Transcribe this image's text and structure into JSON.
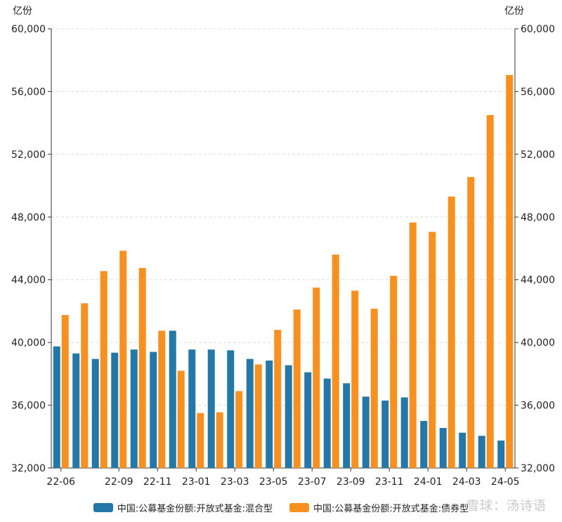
{
  "chart_data": {
    "type": "bar",
    "unit_left": "亿份",
    "unit_right": "亿份",
    "categories": [
      "22-06",
      "22-07",
      "22-08",
      "22-09",
      "22-10",
      "22-11",
      "22-12",
      "23-01",
      "23-02",
      "23-03",
      "23-04",
      "23-05",
      "23-06",
      "23-07",
      "23-08",
      "23-09",
      "23-10",
      "23-11",
      "23-12",
      "24-01",
      "24-02",
      "24-03",
      "24-04",
      "24-05"
    ],
    "x_tick_labels": [
      "22-06",
      "22-09",
      "22-11",
      "23-01",
      "23-03",
      "23-05",
      "23-07",
      "23-09",
      "23-11",
      "24-01",
      "24-03",
      "24-05"
    ],
    "series": [
      {
        "name": "中国:公募基金份额:开放式基金:混合型",
        "color": "#2378a8",
        "values": [
          39750,
          39300,
          38950,
          39350,
          39550,
          39400,
          40750,
          39550,
          39550,
          39500,
          38950,
          38850,
          38550,
          38100,
          37700,
          37400,
          36550,
          36300,
          36500,
          35000,
          34550,
          34250,
          34050,
          33750
        ]
      },
      {
        "name": "中国:公募基金份额:开放式基金:债券型",
        "color": "#f7901e",
        "values": [
          41750,
          42500,
          44550,
          45850,
          44750,
          40750,
          38200,
          35500,
          35550,
          36900,
          38600,
          40800,
          42100,
          43500,
          45600,
          43300,
          42150,
          44250,
          47650,
          47050,
          49300,
          50550,
          54500,
          57050
        ]
      }
    ],
    "y_ticks": [
      "32,000",
      "36,000",
      "40,000",
      "44,000",
      "48,000",
      "52,000",
      "56,000",
      "60,000"
    ],
    "ylim": [
      32000,
      60000
    ],
    "grid": true,
    "legend_position": "bottom"
  },
  "watermark": "雪球：汤诗语"
}
